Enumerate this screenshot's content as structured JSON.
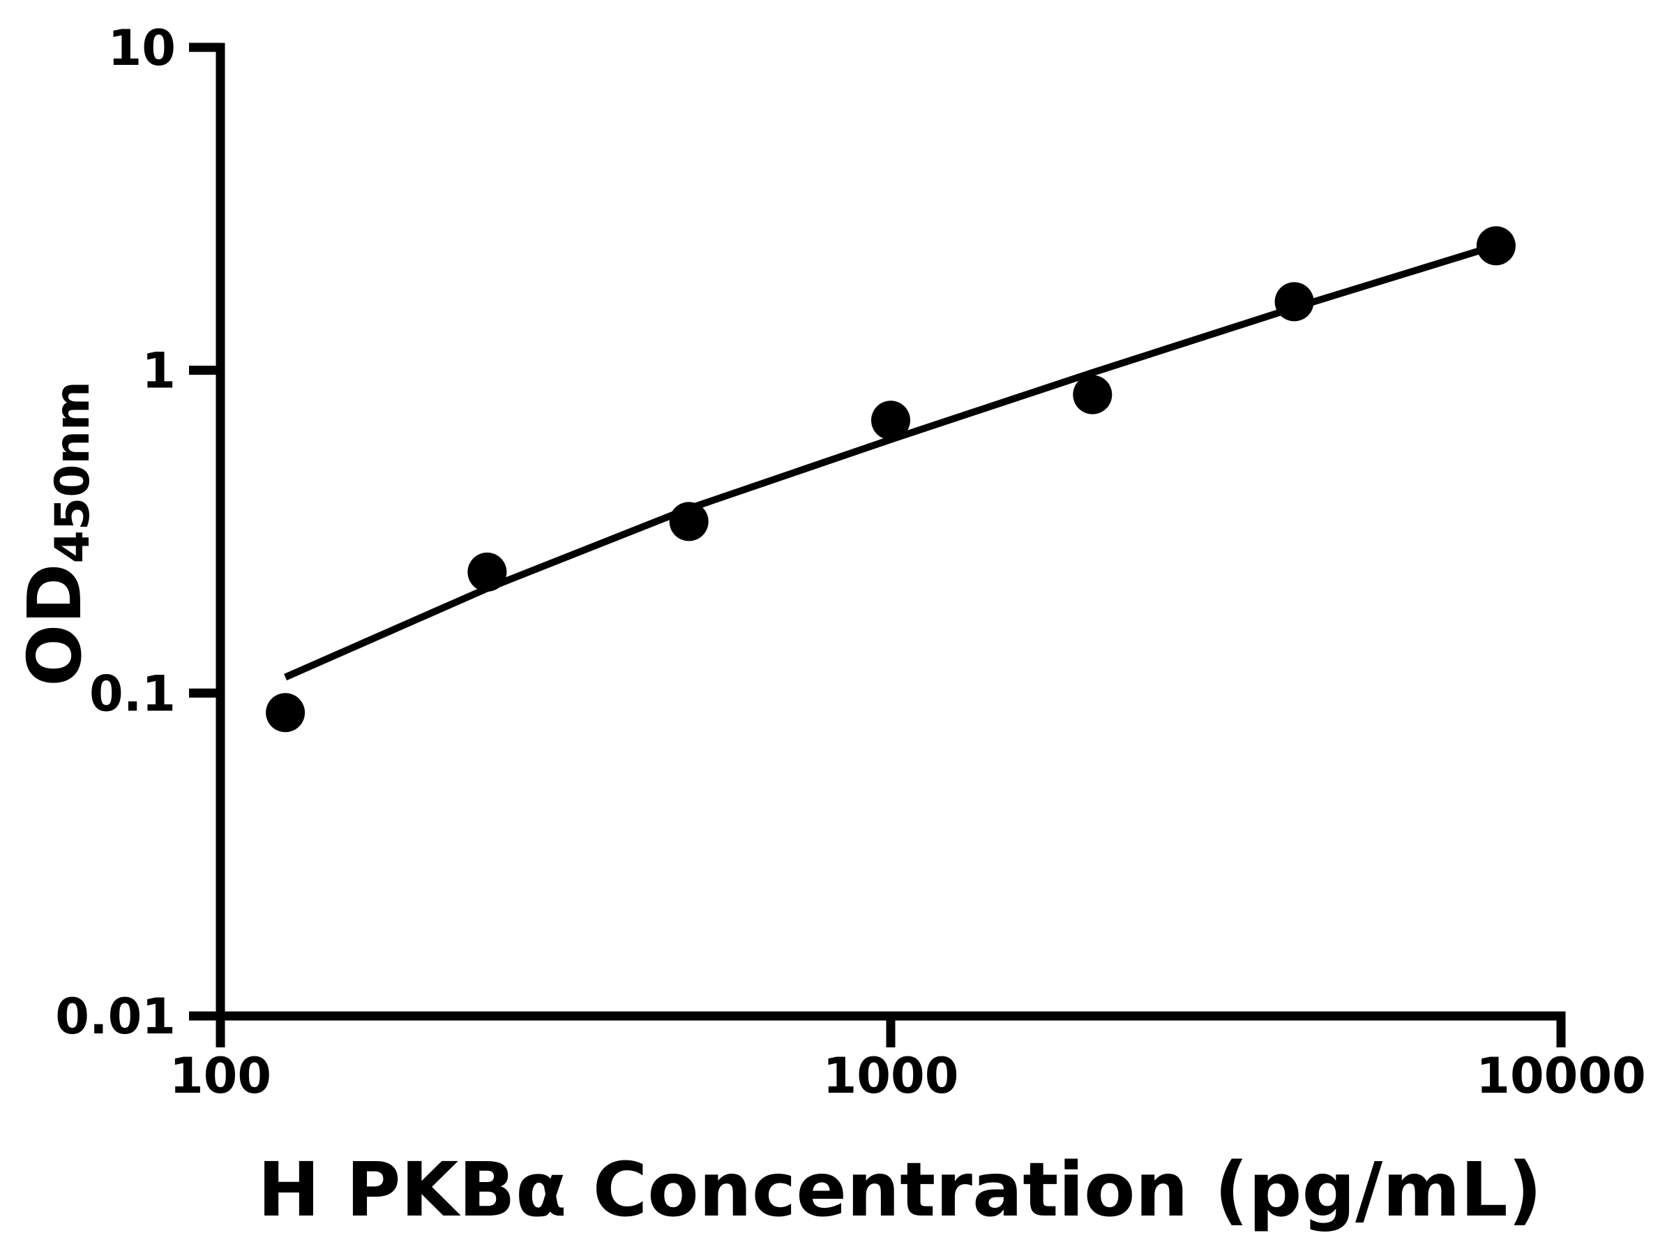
{
  "figure": {
    "background_color": "#ffffff",
    "ink_color": "#000000"
  },
  "chart_data": {
    "type": "scatter",
    "title": "",
    "xlabel": "H PKBα Concentration (pg/mL)",
    "ylabel": "OD",
    "ylabel_subscript": "450nm",
    "x_scale": "log",
    "y_scale": "log",
    "xlim": [
      100,
      10000
    ],
    "ylim": [
      0.01,
      10
    ],
    "x_ticks": [
      100,
      1000,
      10000
    ],
    "x_tick_labels": [
      "100",
      "1000",
      "10000"
    ],
    "y_ticks": [
      10,
      1,
      0.1,
      0.01
    ],
    "y_tick_labels": [
      "10",
      "1",
      "0.1",
      "0.01"
    ],
    "grid": "off",
    "legend": "none",
    "series": [
      {
        "name": "standard-points",
        "type": "scatter",
        "marker": "filled-circle",
        "color": "#000000",
        "points": [
          {
            "x": 125,
            "y": 0.087
          },
          {
            "x": 250,
            "y": 0.237
          },
          {
            "x": 500,
            "y": 0.34
          },
          {
            "x": 1000,
            "y": 0.7
          },
          {
            "x": 2000,
            "y": 0.84
          },
          {
            "x": 4000,
            "y": 1.63
          },
          {
            "x": 8000,
            "y": 2.43
          }
        ]
      },
      {
        "name": "fit-curve",
        "type": "line",
        "color": "#000000",
        "points": [
          {
            "x": 125,
            "y": 0.112
          },
          {
            "x": 250,
            "y": 0.211
          },
          {
            "x": 500,
            "y": 0.373
          },
          {
            "x": 1000,
            "y": 0.61
          },
          {
            "x": 2000,
            "y": 0.983
          },
          {
            "x": 4000,
            "y": 1.562
          },
          {
            "x": 8000,
            "y": 2.432
          }
        ]
      }
    ]
  }
}
